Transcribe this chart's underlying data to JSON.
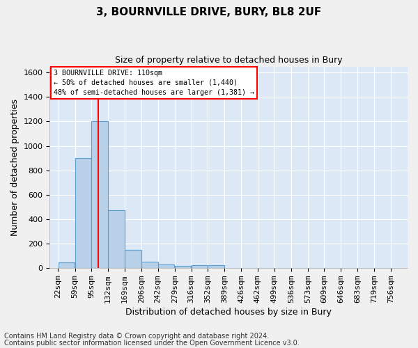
{
  "title1": "3, BOURNVILLE DRIVE, BURY, BL8 2UF",
  "title2": "Size of property relative to detached houses in Bury",
  "xlabel": "Distribution of detached houses by size in Bury",
  "ylabel": "Number of detached properties",
  "footer1": "Contains HM Land Registry data © Crown copyright and database right 2024.",
  "footer2": "Contains public sector information licensed under the Open Government Licence v3.0.",
  "annotation_line1": "3 BOURNVILLE DRIVE: 110sqm",
  "annotation_line2": "← 50% of detached houses are smaller (1,440)",
  "annotation_line3": "48% of semi-detached houses are larger (1,381) →",
  "bar_color": "#b8d0e8",
  "bar_edge_color": "#5a9fd4",
  "red_line_x": 110,
  "bins": [
    22,
    59,
    95,
    132,
    169,
    206,
    242,
    279,
    316,
    352,
    389,
    426,
    462,
    499,
    536,
    573,
    609,
    646,
    683,
    719,
    756
  ],
  "bin_labels": [
    "22sqm",
    "59sqm",
    "95sqm",
    "132sqm",
    "169sqm",
    "206sqm",
    "242sqm",
    "279sqm",
    "316sqm",
    "352sqm",
    "389sqm",
    "426sqm",
    "462sqm",
    "499sqm",
    "536sqm",
    "573sqm",
    "609sqm",
    "646sqm",
    "683sqm",
    "719sqm",
    "756sqm"
  ],
  "bar_heights": [
    45,
    900,
    1200,
    470,
    150,
    50,
    30,
    15,
    20,
    20,
    0,
    0,
    0,
    0,
    0,
    0,
    0,
    0,
    0,
    0
  ],
  "ylim": [
    0,
    1650
  ],
  "fig_bg_color": "#f0f0f0",
  "plot_bg_color": "#dce8f5",
  "grid_color": "#ffffff",
  "title1_fontsize": 11,
  "title2_fontsize": 9,
  "ylabel_fontsize": 9,
  "xlabel_fontsize": 9,
  "tick_fontsize": 8,
  "footer_fontsize": 7
}
